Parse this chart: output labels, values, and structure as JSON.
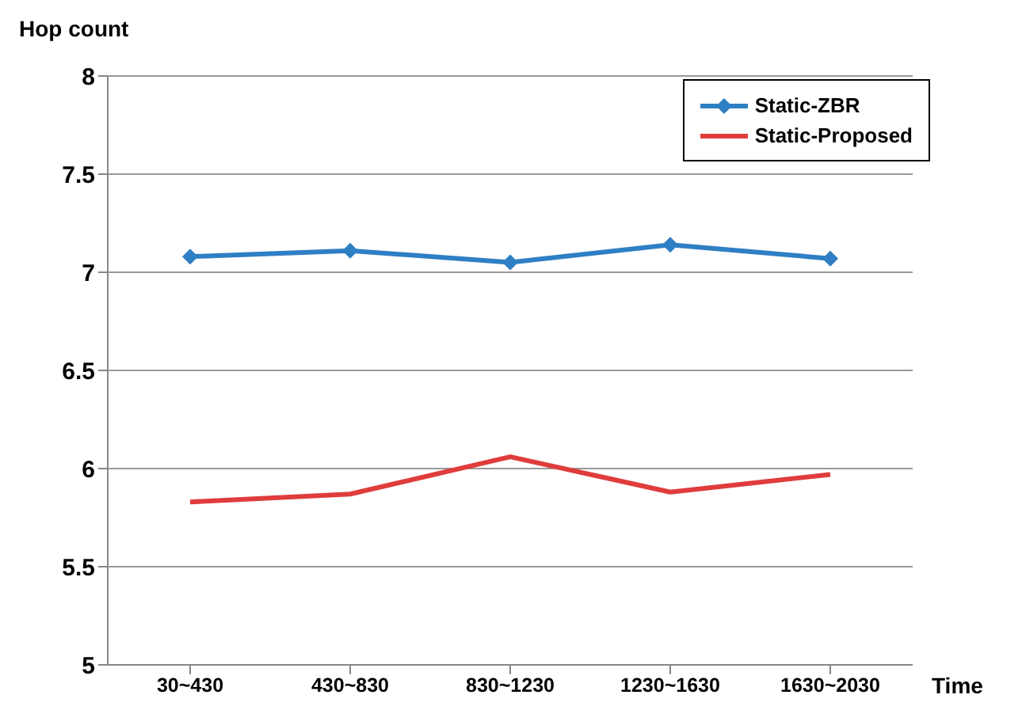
{
  "chart_data": {
    "type": "line",
    "xlabel": "Time",
    "ylabel": "Hop count",
    "categories": [
      "30~430",
      "430~830",
      "830~1230",
      "1230~1630",
      "1630~2030"
    ],
    "series": [
      {
        "name": "Static-ZBR",
        "color": "#2e7fc4",
        "values": [
          7.08,
          7.11,
          7.05,
          7.14,
          7.07
        ],
        "marker": "diamond"
      },
      {
        "name": "Static-Proposed",
        "color": "#e03c3c",
        "values": [
          5.83,
          5.87,
          6.06,
          5.88,
          5.97
        ],
        "marker": "none"
      }
    ],
    "ylim": [
      5,
      8
    ],
    "yticks": [
      5,
      5.5,
      6,
      6.5,
      7,
      7.5,
      8
    ],
    "grid": "y",
    "legend": "top right"
  }
}
